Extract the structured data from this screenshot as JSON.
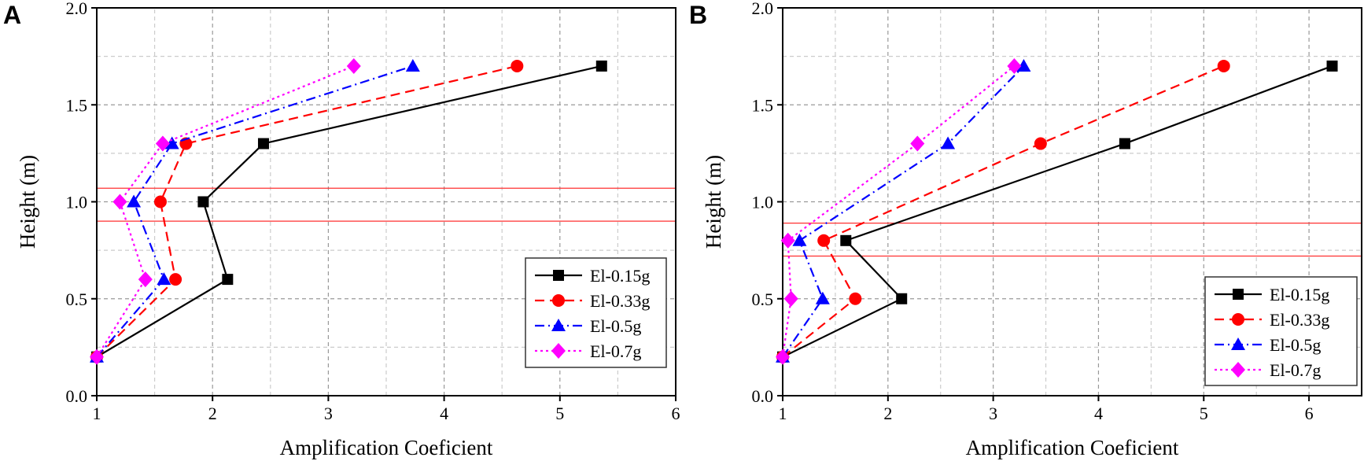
{
  "chart_data": [
    {
      "panel_label": "A",
      "type": "line",
      "xlabel": "Amplification Coeficient",
      "ylabel": "Height (m)",
      "xlim": [
        1,
        6
      ],
      "ylim": [
        0,
        2.0
      ],
      "xticks": [
        "1",
        "2",
        "3",
        "4",
        "5",
        "6"
      ],
      "yticks": [
        "0.0",
        "0.5",
        "1.0",
        "1.5",
        "2.0"
      ],
      "grid": true,
      "legend": "bottom-right",
      "reference_lines_y": [
        0.9,
        1.07
      ],
      "series": [
        {
          "name": "El-0.15g",
          "color": "#000000",
          "marker": "square",
          "dash": "solid",
          "points": [
            [
              1,
              0.2
            ],
            [
              2.13,
              0.6
            ],
            [
              1.92,
              1.0
            ],
            [
              2.44,
              1.3
            ],
            [
              5.36,
              1.7
            ]
          ]
        },
        {
          "name": "El-0.33g",
          "color": "#ff0000",
          "marker": "circle",
          "dash": "dash",
          "points": [
            [
              1,
              0.2
            ],
            [
              1.68,
              0.6
            ],
            [
              1.55,
              1.0
            ],
            [
              1.77,
              1.3
            ],
            [
              4.63,
              1.7
            ]
          ]
        },
        {
          "name": "El-0.5g",
          "color": "#0000ff",
          "marker": "triangle",
          "dash": "dashdot",
          "points": [
            [
              1,
              0.2
            ],
            [
              1.58,
              0.6
            ],
            [
              1.32,
              1.0
            ],
            [
              1.65,
              1.3
            ],
            [
              3.73,
              1.7
            ]
          ]
        },
        {
          "name": "El-0.7g",
          "color": "#ff00ff",
          "marker": "diamond",
          "dash": "dot",
          "points": [
            [
              1,
              0.2
            ],
            [
              1.42,
              0.6
            ],
            [
              1.2,
              1.0
            ],
            [
              1.57,
              1.3
            ],
            [
              3.22,
              1.7
            ]
          ]
        }
      ]
    },
    {
      "panel_label": "B",
      "type": "line",
      "xlabel": "Amplification Coeficient",
      "ylabel": "Height (m)",
      "xlim": [
        1,
        6.5
      ],
      "ylim": [
        0,
        2.0
      ],
      "xticks": [
        "1",
        "2",
        "3",
        "4",
        "5",
        "6"
      ],
      "yticks": [
        "0.0",
        "0.5",
        "1.0",
        "1.5",
        "2.0"
      ],
      "grid": true,
      "legend": "bottom-right",
      "reference_lines_y": [
        0.72,
        0.89
      ],
      "series": [
        {
          "name": "El-0.15g",
          "color": "#000000",
          "marker": "square",
          "dash": "solid",
          "points": [
            [
              1,
              0.2
            ],
            [
              2.13,
              0.5
            ],
            [
              1.6,
              0.8
            ],
            [
              4.25,
              1.3
            ],
            [
              6.22,
              1.7
            ]
          ]
        },
        {
          "name": "El-0.33g",
          "color": "#ff0000",
          "marker": "circle",
          "dash": "dash",
          "points": [
            [
              1,
              0.2
            ],
            [
              1.69,
              0.5
            ],
            [
              1.39,
              0.8
            ],
            [
              3.45,
              1.3
            ],
            [
              5.19,
              1.7
            ]
          ]
        },
        {
          "name": "El-0.5g",
          "color": "#0000ff",
          "marker": "triangle",
          "dash": "dashdot",
          "points": [
            [
              1,
              0.2
            ],
            [
              1.38,
              0.5
            ],
            [
              1.16,
              0.8
            ],
            [
              2.57,
              1.3
            ],
            [
              3.29,
              1.7
            ]
          ]
        },
        {
          "name": "El-0.7g",
          "color": "#ff00ff",
          "marker": "diamond",
          "dash": "dot",
          "points": [
            [
              1,
              0.2
            ],
            [
              1.08,
              0.5
            ],
            [
              1.05,
              0.8
            ],
            [
              2.28,
              1.3
            ],
            [
              3.2,
              1.7
            ]
          ]
        }
      ]
    }
  ]
}
